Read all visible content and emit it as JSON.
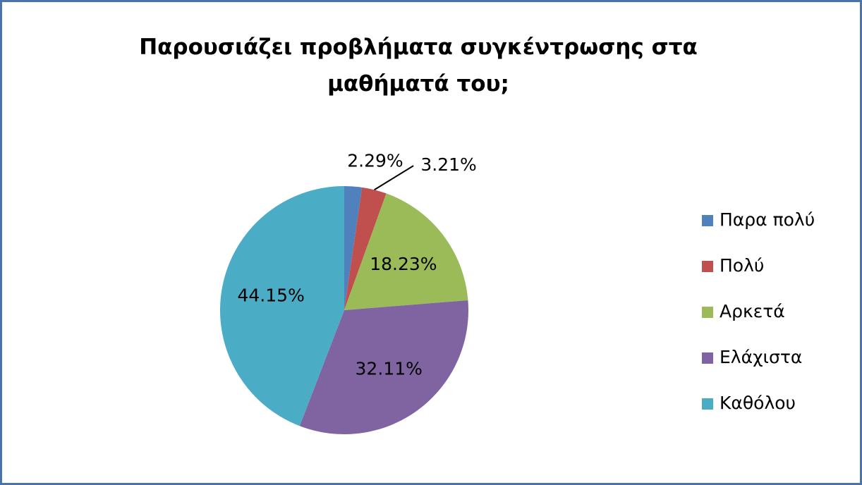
{
  "chart_data": {
    "type": "pie",
    "title": "Παρουσιάζει προβλήματα συγκέντρωσης στα μαθήματά του;",
    "categories": [
      "Παρα πολύ",
      "Πολύ",
      "Αρκετά",
      "Ελάχιστα",
      "Καθόλου"
    ],
    "values": [
      2.29,
      3.21,
      18.23,
      32.11,
      44.15
    ],
    "value_labels": [
      "2.29%",
      "3.21%",
      "18.23%",
      "32.11%",
      "44.15%"
    ],
    "colors": [
      "#4f81bd",
      "#c0504d",
      "#9bbb59",
      "#8064a2",
      "#4bacc6"
    ],
    "legend": "right"
  }
}
